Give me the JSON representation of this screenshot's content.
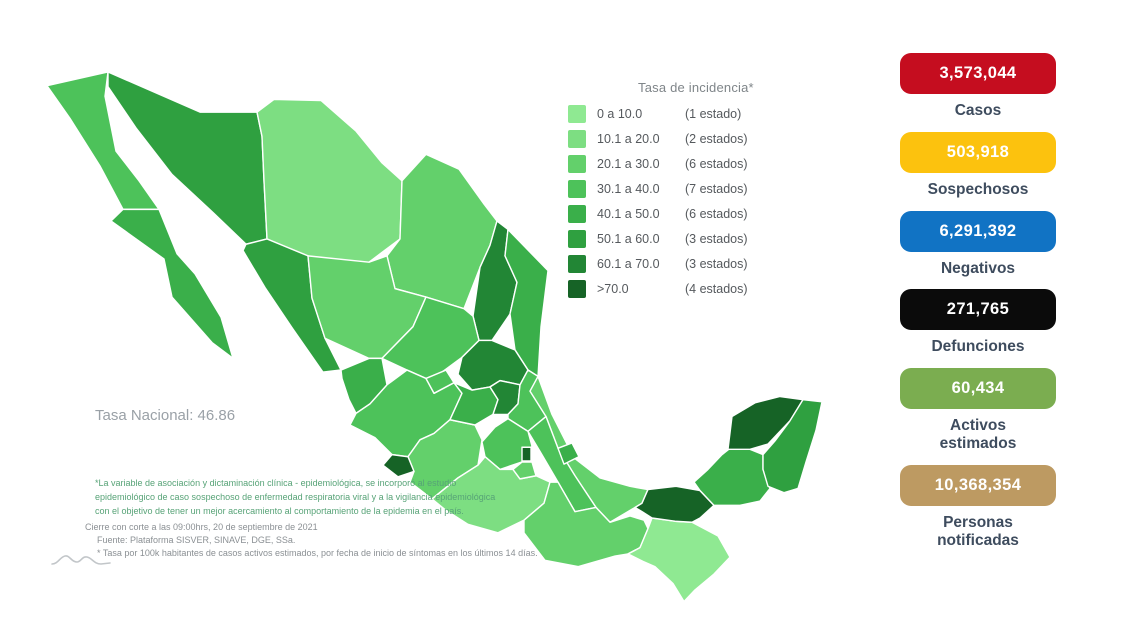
{
  "legend": {
    "title": "Tasa de incidencia*",
    "rows": [
      {
        "range": "0 a 10.0",
        "count": "(1 estado)",
        "color": "#8fe992"
      },
      {
        "range": "10.1 a 20.0",
        "count": "(2 estados)",
        "color": "#7dde82"
      },
      {
        "range": "20.1 a 30.0",
        "count": "(6 estados)",
        "color": "#63d06b"
      },
      {
        "range": "30.1 a 40.0",
        "count": "(7 estados)",
        "color": "#4dc25a"
      },
      {
        "range": "40.1 a 50.0",
        "count": "(6 estados)",
        "color": "#3aaf4a"
      },
      {
        "range": "50.1 a 60.0",
        "count": "(3 estados)",
        "color": "#2fa040"
      },
      {
        "range": "60.1 a 70.0",
        "count": "(3 estados)",
        "color": "#228635"
      },
      {
        "range": ">70.0",
        "count": "(4 estados)",
        "color": "#166326"
      }
    ]
  },
  "national_rate_text": "Tasa Nacional: 46.86",
  "footnotes": {
    "variable_note": "*La variable de asociación y dictaminación clínica - epidemiológica, se incorporó al estudio epidemiológico de caso sospechoso de enfermedad respiratoria viral y a la vigilancia epidemiológica con el objetivo de tener un mejor acercamiento al comportamiento de la epidemia en el país.",
    "cutoff": "Cierre con corte a las 09:00hrs, 20 de septiembre de 2021",
    "source": "Fuente: Plataforma SISVER, SINAVE, DGE, SSa.",
    "rate_note": "* Tasa por 100k habitantes de casos activos estimados, por fecha de inicio de síntomas en los últimos 14 días."
  },
  "stats": [
    {
      "id": "casos",
      "value": "3,573,044",
      "label": "Casos",
      "color": "#c50d1f"
    },
    {
      "id": "sospechosos",
      "value": "503,918",
      "label": "Sospechosos",
      "color": "#fcc20e"
    },
    {
      "id": "negativos",
      "value": "6,291,392",
      "label": "Negativos",
      "color": "#1173c4"
    },
    {
      "id": "defunciones",
      "value": "271,765",
      "label": "Defunciones",
      "color": "#0b0b0b"
    },
    {
      "id": "activos",
      "value": "60,434",
      "label": "Activos estimados",
      "color": "#7bad50"
    },
    {
      "id": "notificadas",
      "value": "10,368,354",
      "label": "Personas notificadas",
      "color": "#bd9a62"
    }
  ],
  "theme": {
    "stat_label_color": "#3e4c5e",
    "note_green_color": "#57a377",
    "note_gray_color": "#8b9094",
    "map_border_color": "#ffffff"
  },
  "chart_data": {
    "type": "heatmap",
    "title": "Tasa de incidencia*",
    "subtitle": "Tasa Nacional: 46.86",
    "legend_position": "right-of-map",
    "bins": [
      {
        "range": "0 a 10.0",
        "states_count": 1
      },
      {
        "range": "10.1 a 20.0",
        "states_count": 2
      },
      {
        "range": "20.1 a 30.0",
        "states_count": 6
      },
      {
        "range": "30.1 a 40.0",
        "states_count": 7
      },
      {
        "range": "40.1 a 50.0",
        "states_count": 6
      },
      {
        "range": "50.1 a 60.0",
        "states_count": 3
      },
      {
        "range": "60.1 a 70.0",
        "states_count": 3
      },
      {
        "range": ">70.0",
        "states_count": 4
      }
    ],
    "national_rate": 46.86,
    "summary_values": [
      {
        "label": "Casos",
        "value": 3573044
      },
      {
        "label": "Sospechosos",
        "value": 503918
      },
      {
        "label": "Negativos",
        "value": 6291392
      },
      {
        "label": "Defunciones",
        "value": 271765
      },
      {
        "label": "Activos estimados",
        "value": 60434
      },
      {
        "label": "Personas notificadas",
        "value": 10368354
      }
    ]
  }
}
